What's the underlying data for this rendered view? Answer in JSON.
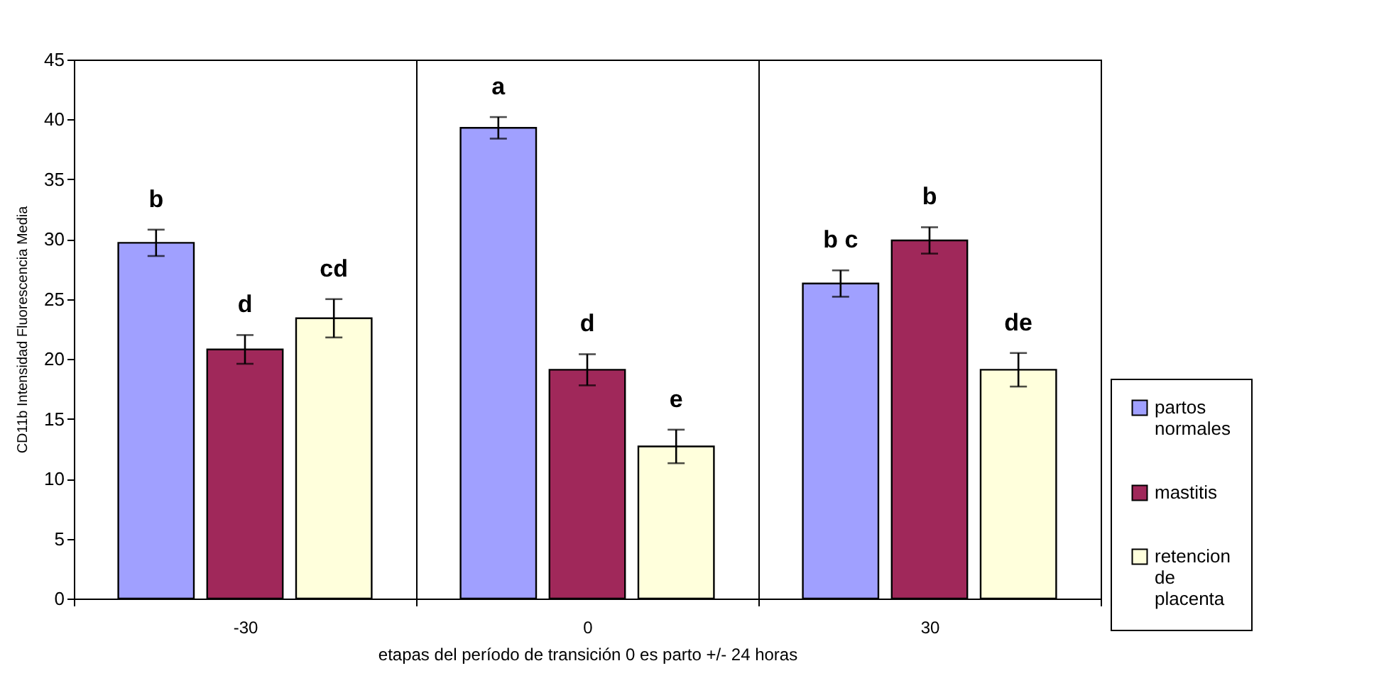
{
  "chart_data": {
    "type": "bar",
    "xlabel": "etapas del período de transición 0 es parto +/- 24 horas",
    "ylabel": "CD11b Intensidad Fluorescencia Media",
    "categories": [
      "-30",
      "0",
      "30"
    ],
    "series": [
      {
        "name": "partos normales",
        "color": "#a0a0ff",
        "values": [
          29.7,
          39.3,
          26.3
        ],
        "errors": [
          1.1,
          0.9,
          1.1
        ],
        "value_labels": [
          "b",
          "a",
          "b c"
        ]
      },
      {
        "name": "mastitis",
        "color": "#a0285a",
        "values": [
          20.8,
          19.1,
          29.9
        ],
        "errors": [
          1.2,
          1.3,
          1.1
        ],
        "value_labels": [
          "d",
          "d",
          "b"
        ]
      },
      {
        "name": "retencion de placenta",
        "color": "#ffffdc",
        "values": [
          23.4,
          12.7,
          19.1
        ],
        "errors": [
          1.6,
          1.4,
          1.4
        ],
        "value_labels": [
          "cd",
          "e",
          "de"
        ]
      }
    ],
    "ylim": [
      0,
      45
    ],
    "yticks": [
      0,
      5,
      10,
      15,
      20,
      25,
      30,
      35,
      40,
      45
    ],
    "grid": "x",
    "legend": "bottom right"
  }
}
